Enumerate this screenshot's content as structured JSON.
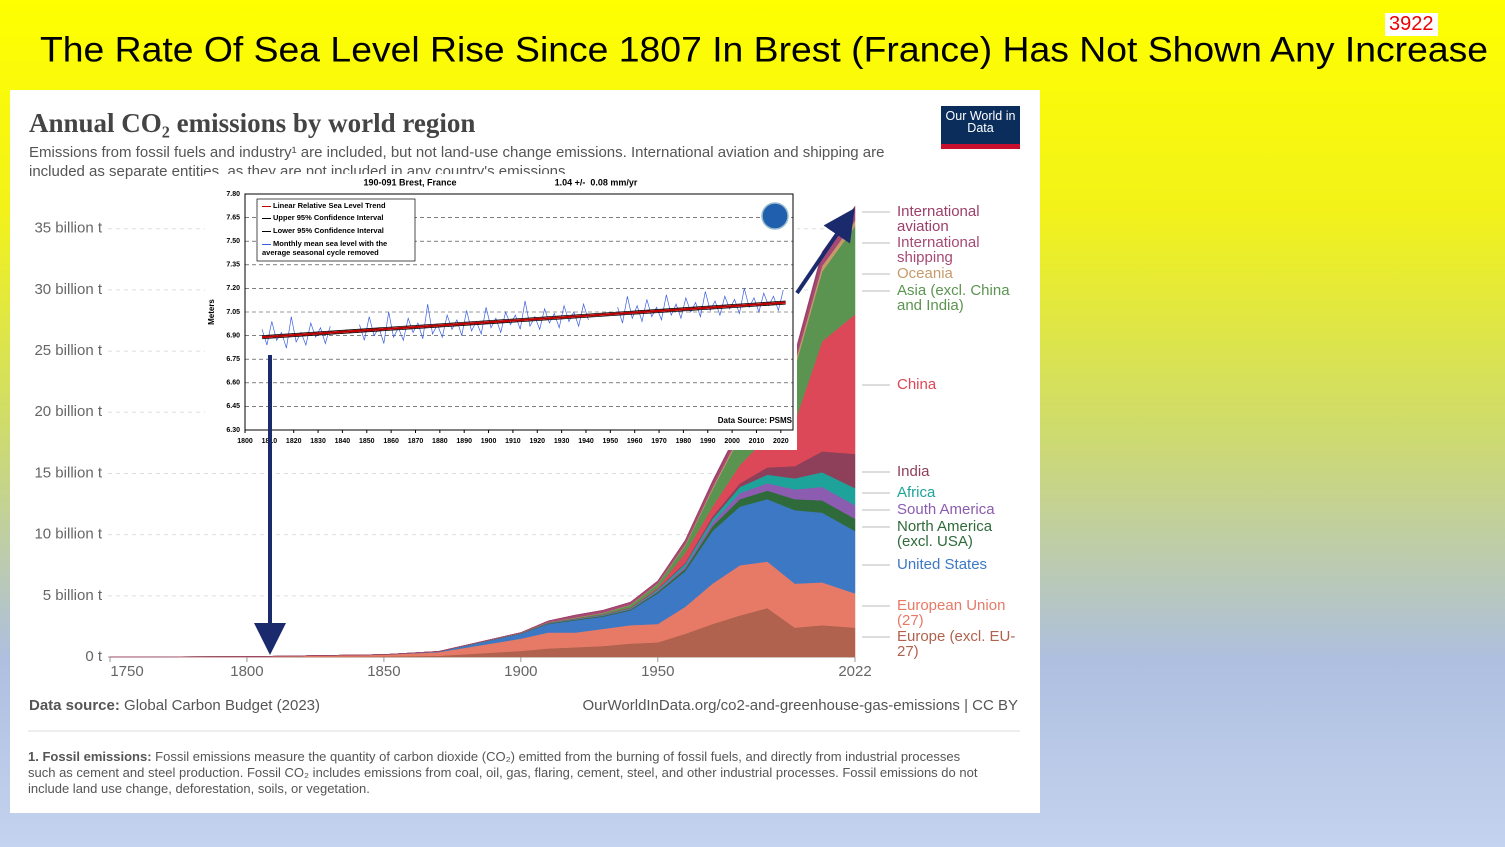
{
  "slide": {
    "title": "The Rate Of Sea Level Rise Since 1807 In Brest (France) Has Not Shown Any Increase",
    "number": 3922
  },
  "chart_data": [
    {
      "type": "area",
      "stacked": true,
      "title": "Annual CO₂ emissions by world region",
      "subtitle": "Emissions from fossil fuels and industry¹ are included, but not land-use change emissions. International aviation and shipping are included as separate entities, as they are not included in any country's emissions.",
      "logo": "Our World in Data",
      "source_label": "Data source:",
      "source": "Global Carbon Budget (2023)",
      "url": "OurWorldInData.org/co2-and-greenhouse-gas-emissions | CC BY",
      "footnote_label": "1. Fossil emissions:",
      "footnote": "Fossil emissions measure the quantity of carbon dioxide (CO₂) emitted from the burning of fossil fuels, and directly from industrial processes such as cement and steel production. Fossil CO₂ includes emissions from coal, oil, gas, flaring, cement, steel, and other industrial processes. Fossil emissions do not include land use change, deforestation, soils, or vegetation.",
      "x": [
        1750,
        1800,
        1850,
        1870,
        1900,
        1910,
        1920,
        1930,
        1940,
        1950,
        1960,
        1970,
        1980,
        1990,
        2000,
        2010,
        2022
      ],
      "xlim": [
        1750,
        2022
      ],
      "xticks": [
        1750,
        1800,
        1850,
        1900,
        1950,
        2022
      ],
      "ylim": [
        0,
        38
      ],
      "yticks": [
        {
          "value": 0,
          "label": "0 t"
        },
        {
          "value": 5,
          "label": "5 billion t"
        },
        {
          "value": 10,
          "label": "10 billion t"
        },
        {
          "value": 15,
          "label": "15 billion t"
        },
        {
          "value": 20,
          "label": "20 billion t"
        },
        {
          "value": 25,
          "label": "25 billion t"
        },
        {
          "value": 30,
          "label": "30 billion t"
        },
        {
          "value": 35,
          "label": "35 billion t"
        }
      ],
      "grid": true,
      "series": [
        {
          "name": "Europe (excl. EU-27)",
          "color": "#b0624e",
          "values": [
            0,
            0.01,
            0.05,
            0.1,
            0.5,
            0.7,
            0.8,
            0.9,
            1.1,
            1.2,
            1.9,
            2.7,
            3.4,
            4.0,
            2.4,
            2.6,
            2.4
          ]
        },
        {
          "name": "European Union (27)",
          "color": "#e77a66",
          "values": [
            0.01,
            0.02,
            0.14,
            0.3,
            1.0,
            1.3,
            1.2,
            1.4,
            1.5,
            1.5,
            2.2,
            3.3,
            4.1,
            3.8,
            3.6,
            3.5,
            2.8
          ]
        },
        {
          "name": "United States",
          "color": "#3d78c4",
          "values": [
            0,
            0,
            0.01,
            0.05,
            0.4,
            0.7,
            1.0,
            1.0,
            1.2,
            2.5,
            2.9,
            4.3,
            4.8,
            5.1,
            6.0,
            5.7,
            5.1
          ]
        },
        {
          "name": "North America (excl. USA)",
          "color": "#2f6a3a",
          "values": [
            0,
            0,
            0,
            0,
            0.02,
            0.05,
            0.06,
            0.07,
            0.08,
            0.13,
            0.2,
            0.4,
            0.6,
            0.7,
            0.9,
            1.0,
            1.0
          ]
        },
        {
          "name": "South America",
          "color": "#8b5cb0",
          "values": [
            0,
            0,
            0,
            0,
            0.01,
            0.02,
            0.03,
            0.04,
            0.05,
            0.1,
            0.2,
            0.3,
            0.5,
            0.6,
            0.8,
            1.1,
            1.1
          ]
        },
        {
          "name": "Africa",
          "color": "#1ea39b",
          "values": [
            0,
            0,
            0,
            0,
            0.01,
            0.02,
            0.03,
            0.04,
            0.05,
            0.1,
            0.2,
            0.3,
            0.5,
            0.7,
            0.9,
            1.2,
            1.4
          ]
        },
        {
          "name": "India",
          "color": "#8e3f5a",
          "values": [
            0,
            0,
            0,
            0.01,
            0.02,
            0.02,
            0.03,
            0.03,
            0.04,
            0.06,
            0.1,
            0.2,
            0.3,
            0.6,
            1.0,
            1.7,
            2.8
          ]
        },
        {
          "name": "China",
          "color": "#dc4857",
          "values": [
            0,
            0,
            0,
            0,
            0.01,
            0.01,
            0.01,
            0.02,
            0.03,
            0.08,
            0.8,
            0.8,
            1.5,
            2.5,
            3.6,
            9.0,
            11.4
          ]
        },
        {
          "name": "Asia (excl. China and India)",
          "color": "#5b9450",
          "values": [
            0,
            0,
            0,
            0,
            0.01,
            0.02,
            0.05,
            0.1,
            0.2,
            0.3,
            0.6,
            1.4,
            2.3,
            3.0,
            4.4,
            5.7,
            7.2
          ]
        },
        {
          "name": "Oceania",
          "color": "#c79a6a",
          "values": [
            0,
            0,
            0,
            0,
            0.01,
            0.01,
            0.02,
            0.02,
            0.03,
            0.04,
            0.08,
            0.15,
            0.2,
            0.3,
            0.4,
            0.45,
            0.45
          ]
        },
        {
          "name": "International shipping",
          "color": "#a64a74",
          "values": [
            0,
            0,
            0,
            0,
            0.01,
            0.1,
            0.2,
            0.2,
            0.2,
            0.2,
            0.3,
            0.4,
            0.4,
            0.4,
            0.5,
            0.7,
            0.7
          ]
        },
        {
          "name": "International aviation",
          "color": "#9c3f68",
          "values": [
            0,
            0,
            0,
            0,
            0,
            0,
            0,
            0,
            0,
            0.02,
            0.07,
            0.15,
            0.2,
            0.25,
            0.3,
            0.45,
            0.5
          ]
        }
      ]
    },
    {
      "type": "line",
      "title": "190-091 Brest, France",
      "subtitle": "1.04 +/-  0.08 mm/yr",
      "ylabel": "Meters",
      "source": "Data Source: PSMS",
      "xlim": [
        1800,
        2025
      ],
      "xticks": [
        1800,
        1810,
        1820,
        1830,
        1840,
        1850,
        1860,
        1870,
        1880,
        1890,
        1900,
        1910,
        1920,
        1930,
        1940,
        1950,
        1960,
        1970,
        1980,
        1990,
        2000,
        2010,
        2020
      ],
      "ylim": [
        6.3,
        7.8
      ],
      "yticks": [
        {
          "value": 6.3,
          "label": "6.30"
        },
        6.45,
        {
          "value": 6.6,
          "label": "6.60"
        },
        6.75,
        {
          "value": 6.9,
          "label": "6.90"
        },
        7.05,
        {
          "value": 7.2,
          "label": "7.20"
        },
        7.35,
        {
          "value": 7.5,
          "label": "7.50"
        },
        7.65,
        {
          "value": 7.8,
          "label": "7.80"
        }
      ],
      "grid": true,
      "series": [
        {
          "name": "Linear Relative Sea Level Trend",
          "color": "#c00000",
          "x": [
            1807,
            2022
          ],
          "values": [
            6.89,
            7.11
          ]
        },
        {
          "name": "Upper 95% Confidence Interval",
          "color": "#000000",
          "x": [
            1807,
            2022
          ],
          "values": [
            6.9,
            7.12
          ]
        },
        {
          "name": "Lower 95% Confidence Interval",
          "color": "#000000",
          "x": [
            1807,
            2022
          ],
          "values": [
            6.88,
            7.1
          ]
        },
        {
          "name": "Monthly mean sea level with the average seasonal cycle removed",
          "color": "#3a5fe0",
          "x": [
            1807,
            1809,
            1811,
            1813,
            1815,
            1817,
            1819,
            1821,
            1823,
            1825,
            1827,
            1829,
            1831,
            1833,
            1835,
            1837,
            1847,
            1849,
            1851,
            1853,
            1855,
            1857,
            1859,
            1861,
            1863,
            1865,
            1867,
            1869,
            1871,
            1873,
            1875,
            1877,
            1879,
            1881,
            1883,
            1885,
            1887,
            1889,
            1891,
            1893,
            1895,
            1897,
            1899,
            1901,
            1903,
            1905,
            1907,
            1909,
            1911,
            1913,
            1915,
            1917,
            1919,
            1921,
            1923,
            1925,
            1927,
            1929,
            1931,
            1933,
            1935,
            1937,
            1939,
            1941,
            1945,
            1953,
            1955,
            1957,
            1959,
            1961,
            1963,
            1965,
            1967,
            1969,
            1971,
            1973,
            1975,
            1977,
            1979,
            1981,
            1983,
            1985,
            1987,
            1989,
            1991,
            1993,
            1995,
            1997,
            1999,
            2001,
            2003,
            2005,
            2007,
            2009,
            2011,
            2013,
            2015,
            2017,
            2019,
            2021
          ],
          "values": [
            6.94,
            6.84,
            6.99,
            6.87,
            6.92,
            6.82,
            7.02,
            6.86,
            6.92,
            6.84,
            6.98,
            6.89,
            6.95,
            6.85,
            6.96,
            null,
            6.97,
            6.87,
            7.02,
            6.9,
            6.95,
            6.85,
            7.05,
            6.89,
            6.95,
            6.87,
            7.01,
            6.92,
            6.98,
            6.88,
            7.1,
            6.91,
            6.97,
            6.89,
            7.03,
            6.94,
            7.0,
            6.9,
            7.06,
            6.93,
            6.99,
            6.91,
            7.08,
            6.95,
            7.01,
            6.92,
            7.05,
            6.97,
            7.03,
            6.94,
            7.12,
            6.96,
            7.02,
            6.94,
            7.07,
            6.98,
            7.04,
            6.95,
            7.09,
            6.99,
            7.05,
            6.96,
            7.1,
            7.0,
            null,
            7.08,
            6.98,
            7.15,
            7.01,
            7.09,
            6.99,
            7.13,
            7.02,
            7.08,
            7.0,
            7.16,
            7.03,
            7.1,
            7.01,
            7.14,
            7.05,
            7.11,
            7.02,
            7.18,
            7.06,
            7.12,
            7.03,
            7.15,
            7.07,
            7.13,
            7.04,
            7.2,
            7.08,
            7.14,
            7.05,
            7.17,
            7.09,
            7.15,
            7.06,
            7.19
          ]
        }
      ]
    }
  ]
}
